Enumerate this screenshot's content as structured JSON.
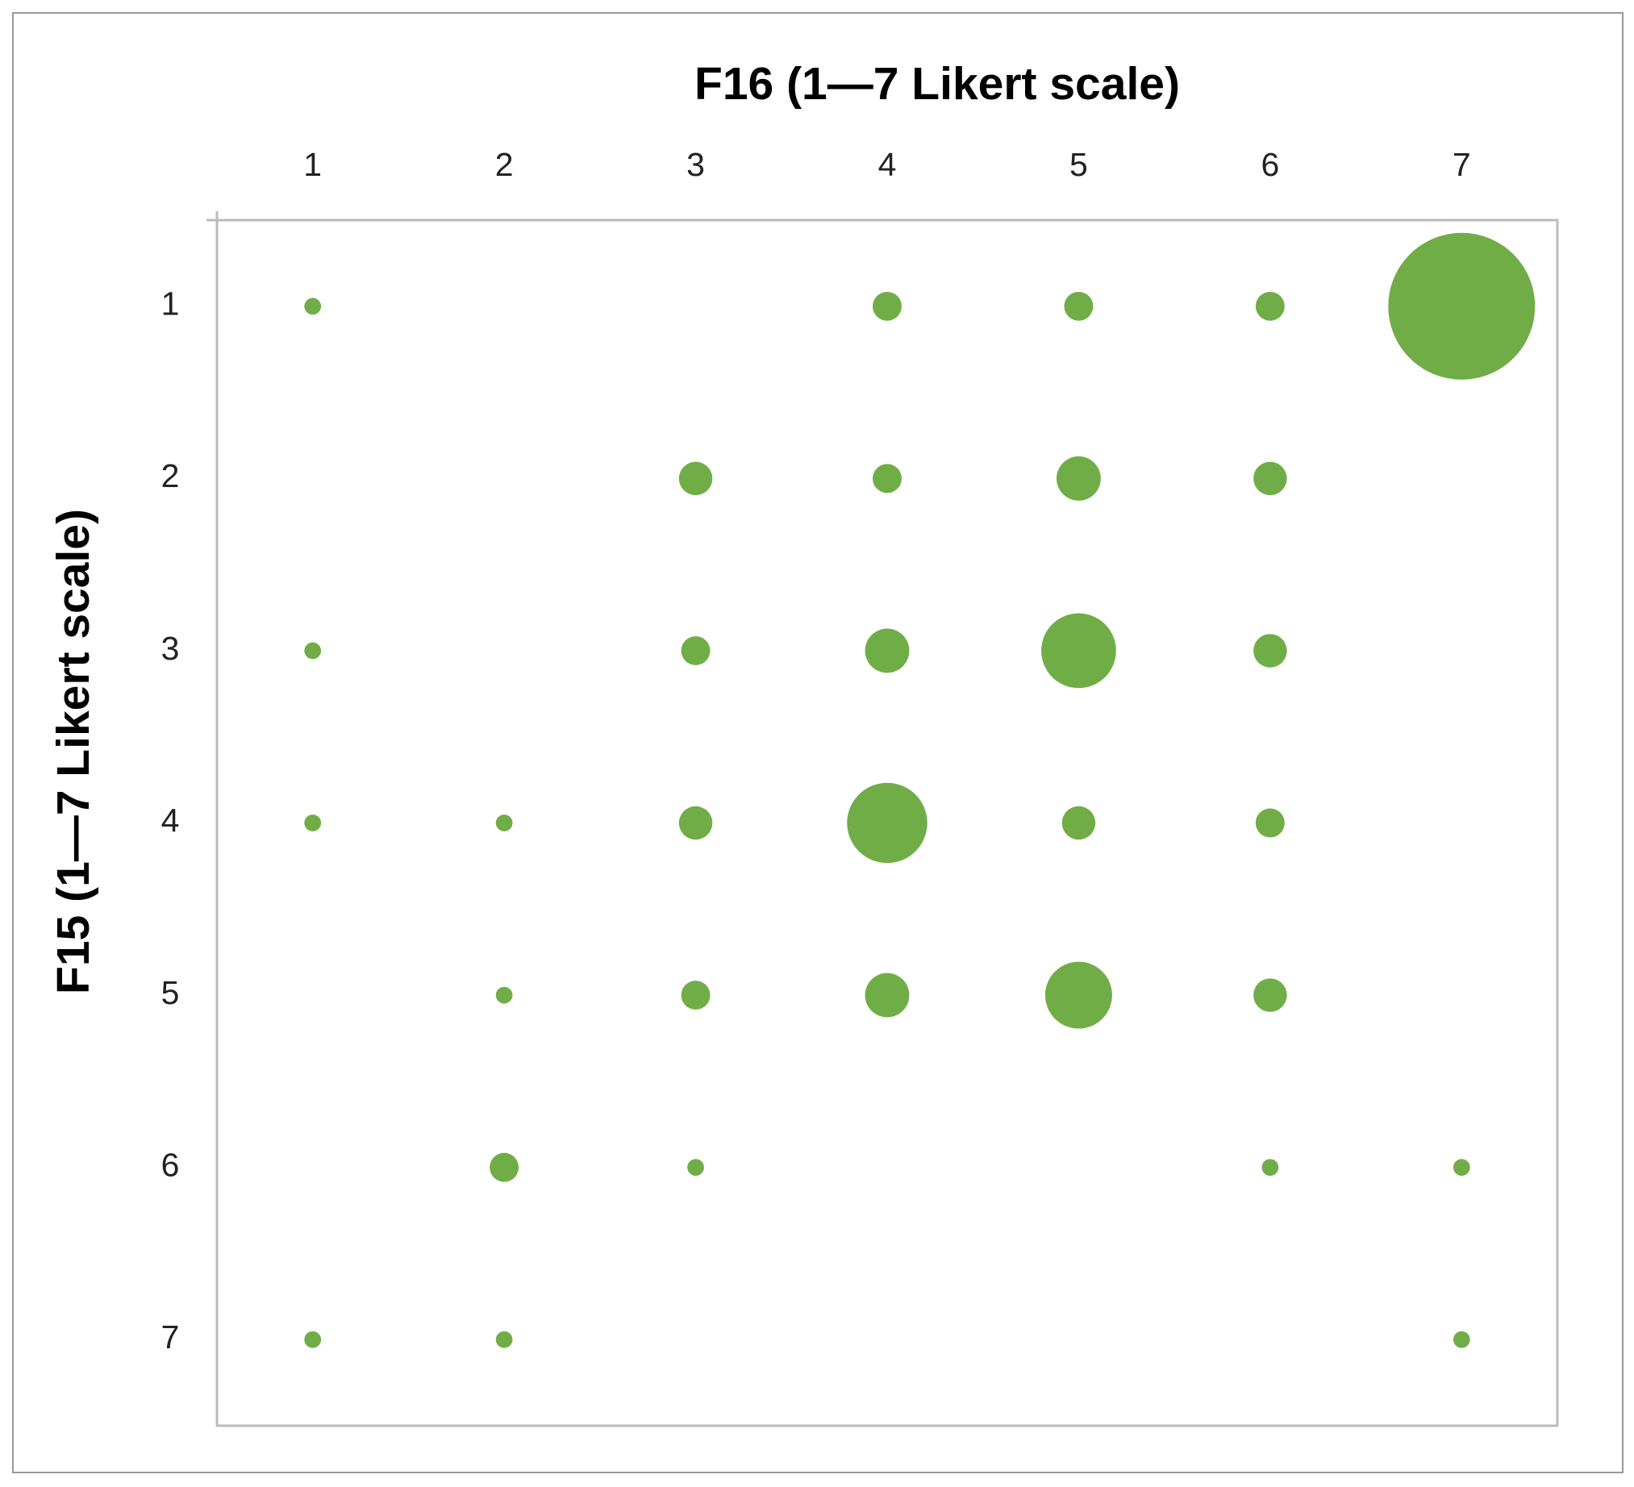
{
  "chart_data": {
    "type": "bubble",
    "title": "F16  (1—7 Likert scale)",
    "y_label": "F15 (1—7 Likert scale)",
    "xlim": [
      0.5,
      7.5
    ],
    "ylim": [
      0.5,
      7.5
    ],
    "y_inverted": true,
    "xticks": [
      1,
      2,
      3,
      4,
      5,
      6,
      7
    ],
    "yticks": [
      1,
      2,
      3,
      4,
      5,
      6,
      7
    ],
    "series": [
      {
        "color": "#70ad47",
        "x": [
          1,
          4,
          5,
          6,
          7,
          3,
          4,
          5,
          6,
          1,
          3,
          4,
          5,
          6,
          1,
          2,
          3,
          4,
          5,
          6,
          2,
          3,
          4,
          5,
          6,
          2,
          3,
          6,
          7,
          1,
          2,
          7
        ],
        "y": [
          1,
          1,
          1,
          1,
          1,
          2,
          2,
          2,
          2,
          3,
          3,
          3,
          3,
          3,
          4,
          4,
          4,
          4,
          4,
          4,
          5,
          5,
          5,
          5,
          5,
          6,
          6,
          6,
          6,
          7,
          7,
          7
        ],
        "size": [
          1,
          3,
          3,
          3,
          77,
          4,
          3,
          7,
          4,
          1,
          3,
          7,
          20,
          4,
          1,
          1,
          4,
          23,
          4,
          3,
          1,
          3,
          7,
          16,
          4,
          3,
          1,
          1,
          1,
          1,
          1,
          1
        ]
      }
    ]
  }
}
